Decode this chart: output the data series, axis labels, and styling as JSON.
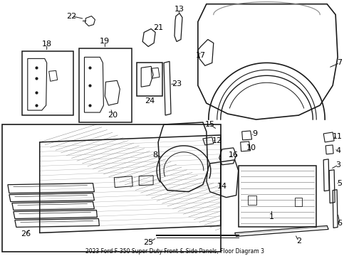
{
  "title": "2023 Ford F-350 Super Duty Front & Side Panels, Floor Diagram 3",
  "bg_color": "#ffffff",
  "line_color": "#1a1a1a",
  "label_color": "#000000",
  "fig_width": 4.9,
  "fig_height": 3.6,
  "dpi": 100
}
